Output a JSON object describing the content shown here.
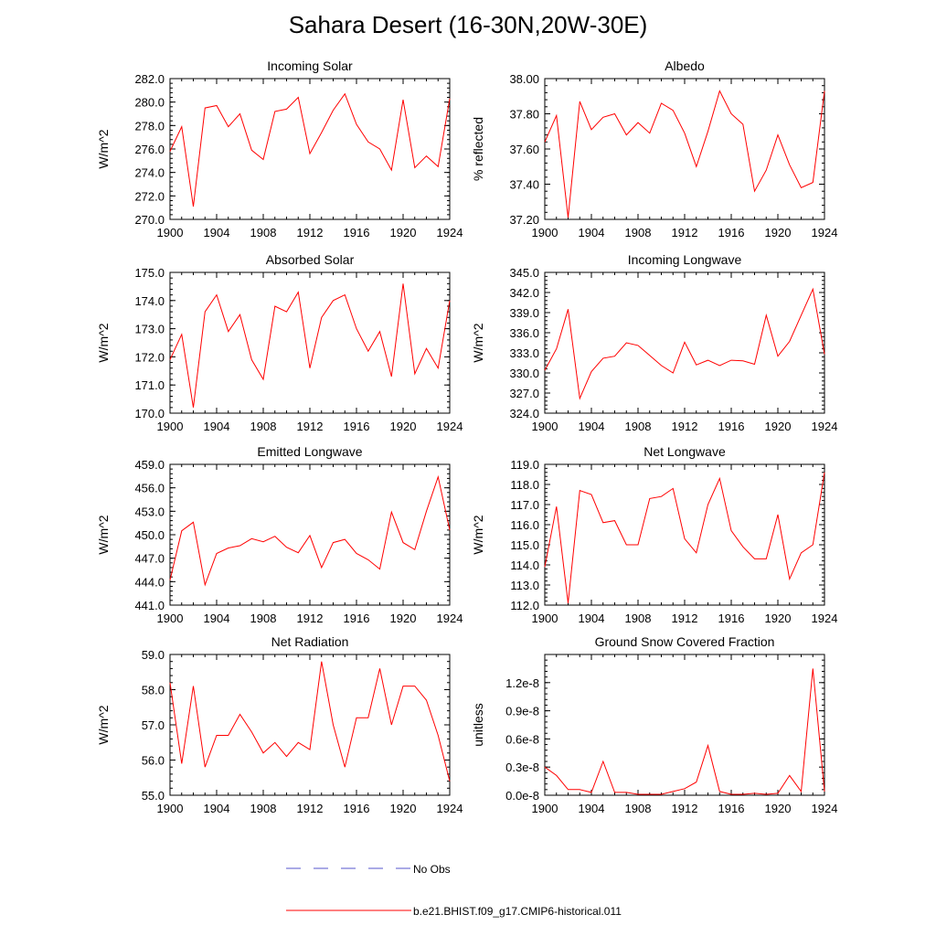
{
  "figure": {
    "title": "Sahara Desert (16-30N,20W-30E)",
    "legend": {
      "obs_label": "No Obs",
      "obs_color": "#5555cc",
      "model_label": "b.e21.BHIST.f09_g17.CMIP6-historical.011",
      "model_color": "#ff0000"
    }
  },
  "chart_data": [
    {
      "type": "line",
      "title": "Incoming Solar",
      "ylabel": "W/m^2",
      "xlim": [
        1900,
        1924
      ],
      "ylim": [
        270,
        282
      ],
      "xticks": [
        "1900",
        "1904",
        "1908",
        "1912",
        "1916",
        "1920",
        "1924"
      ],
      "yticks": [
        "270.0",
        "272.0",
        "274.0",
        "276.0",
        "278.0",
        "280.0",
        "282.0"
      ],
      "series": [
        {
          "values": [
            275.8,
            277.9,
            271.1,
            279.5,
            279.7,
            277.9,
            279.0,
            275.9,
            275.1,
            279.2,
            279.4,
            280.4,
            275.6,
            277.4,
            279.3,
            280.7,
            278.1,
            276.6,
            276.0,
            274.2,
            280.2,
            274.4,
            275.4,
            274.5,
            280.3
          ]
        }
      ]
    },
    {
      "type": "line",
      "title": "Albedo",
      "ylabel": "% reflected",
      "xlim": [
        1900,
        1924
      ],
      "ylim": [
        37.2,
        38.0
      ],
      "xticks": [
        "1900",
        "1904",
        "1908",
        "1912",
        "1916",
        "1920",
        "1924"
      ],
      "yticks": [
        "37.20",
        "37.40",
        "37.60",
        "37.80",
        "38.00"
      ],
      "series": [
        {
          "values": [
            37.64,
            37.79,
            37.21,
            37.87,
            37.71,
            37.78,
            37.8,
            37.68,
            37.75,
            37.69,
            37.86,
            37.82,
            37.69,
            37.5,
            37.7,
            37.93,
            37.8,
            37.74,
            37.36,
            37.48,
            37.68,
            37.51,
            37.38,
            37.41,
            37.93
          ]
        }
      ]
    },
    {
      "type": "line",
      "title": "Absorbed Solar",
      "ylabel": "W/m^2",
      "xlim": [
        1900,
        1924
      ],
      "ylim": [
        170,
        175
      ],
      "xticks": [
        "1900",
        "1904",
        "1908",
        "1912",
        "1916",
        "1920",
        "1924"
      ],
      "yticks": [
        "170.0",
        "171.0",
        "172.0",
        "173.0",
        "174.0",
        "175.0"
      ],
      "series": [
        {
          "values": [
            171.9,
            172.8,
            170.2,
            173.6,
            174.2,
            172.9,
            173.5,
            171.9,
            171.2,
            173.8,
            173.6,
            174.3,
            171.6,
            173.4,
            174.0,
            174.2,
            173.0,
            172.2,
            172.9,
            171.3,
            174.6,
            171.4,
            172.3,
            171.6,
            174.0
          ]
        }
      ]
    },
    {
      "type": "line",
      "title": "Incoming Longwave",
      "ylabel": "W/m^2",
      "xlim": [
        1900,
        1924
      ],
      "ylim": [
        324,
        345
      ],
      "xticks": [
        "1900",
        "1904",
        "1908",
        "1912",
        "1916",
        "1920",
        "1924"
      ],
      "yticks": [
        "324.0",
        "327.0",
        "330.0",
        "333.0",
        "336.0",
        "339.0",
        "342.0",
        "345.0"
      ],
      "series": [
        {
          "values": [
            330.4,
            333.6,
            339.5,
            326.2,
            330.2,
            332.2,
            332.5,
            334.5,
            334.1,
            332.6,
            331.1,
            330.0,
            334.6,
            331.2,
            331.9,
            331.1,
            331.9,
            331.8,
            331.3,
            338.6,
            332.5,
            334.7,
            338.6,
            342.5,
            332.8
          ]
        }
      ]
    },
    {
      "type": "line",
      "title": "Emitted Longwave",
      "ylabel": "W/m^2",
      "xlim": [
        1900,
        1924
      ],
      "ylim": [
        441,
        459
      ],
      "xticks": [
        "1900",
        "1904",
        "1908",
        "1912",
        "1916",
        "1920",
        "1924"
      ],
      "yticks": [
        "441.0",
        "444.0",
        "447.0",
        "450.0",
        "453.0",
        "456.0",
        "459.0"
      ],
      "series": [
        {
          "values": [
            444.2,
            450.5,
            451.6,
            443.6,
            447.6,
            448.3,
            448.6,
            449.5,
            449.1,
            449.8,
            448.4,
            447.7,
            449.9,
            445.8,
            449.0,
            449.4,
            447.6,
            446.8,
            445.6,
            452.9,
            449.0,
            448.1,
            453.0,
            457.4,
            450.6
          ]
        }
      ]
    },
    {
      "type": "line",
      "title": "Net Longwave",
      "ylabel": "W/m^2",
      "xlim": [
        1900,
        1924
      ],
      "ylim": [
        112,
        119
      ],
      "xticks": [
        "1900",
        "1904",
        "1908",
        "1912",
        "1916",
        "1920",
        "1924"
      ],
      "yticks": [
        "112.0",
        "113.0",
        "114.0",
        "115.0",
        "116.0",
        "117.0",
        "118.0",
        "119.0"
      ],
      "series": [
        {
          "values": [
            113.9,
            116.9,
            112.1,
            117.7,
            117.5,
            116.1,
            116.2,
            115.0,
            115.0,
            117.3,
            117.4,
            117.8,
            115.3,
            114.6,
            117.0,
            118.3,
            115.7,
            114.9,
            114.3,
            114.3,
            116.5,
            113.3,
            114.6,
            115.0,
            118.6
          ]
        }
      ]
    },
    {
      "type": "line",
      "title": "Net Radiation",
      "ylabel": "W/m^2",
      "xlim": [
        1900,
        1924
      ],
      "ylim": [
        55,
        59
      ],
      "xticks": [
        "1900",
        "1904",
        "1908",
        "1912",
        "1916",
        "1920",
        "1924"
      ],
      "yticks": [
        "55.0",
        "56.0",
        "57.0",
        "58.0",
        "59.0"
      ],
      "series": [
        {
          "values": [
            58.2,
            55.9,
            58.1,
            55.8,
            56.7,
            56.7,
            57.3,
            56.8,
            56.2,
            56.5,
            56.1,
            56.5,
            56.3,
            58.8,
            57.0,
            55.8,
            57.2,
            57.2,
            58.6,
            57.0,
            58.1,
            58.1,
            57.7,
            56.7,
            55.4
          ]
        }
      ]
    },
    {
      "type": "line",
      "title": "Ground Snow Covered Fraction",
      "ylabel": "unitless",
      "xlim": [
        1900,
        1924
      ],
      "ylim": [
        0,
        1.5
      ],
      "yticks_at": [
        0,
        0.3,
        0.6,
        0.9,
        1.2
      ],
      "xticks": [
        "1900",
        "1904",
        "1908",
        "1912",
        "1916",
        "1920",
        "1924"
      ],
      "yticks": [
        "0.0e-8",
        "0.3e-8",
        "0.6e-8",
        "0.9e-8",
        "1.2e-8"
      ],
      "series": [
        {
          "values": [
            0.3,
            0.21,
            0.06,
            0.06,
            0.03,
            0.36,
            0.03,
            0.03,
            0.01,
            0.01,
            0.01,
            0.04,
            0.07,
            0.14,
            0.53,
            0.04,
            0.01,
            0.01,
            0.02,
            0.01,
            0.02,
            0.21,
            0.04,
            1.35,
            0.04
          ]
        }
      ]
    }
  ]
}
